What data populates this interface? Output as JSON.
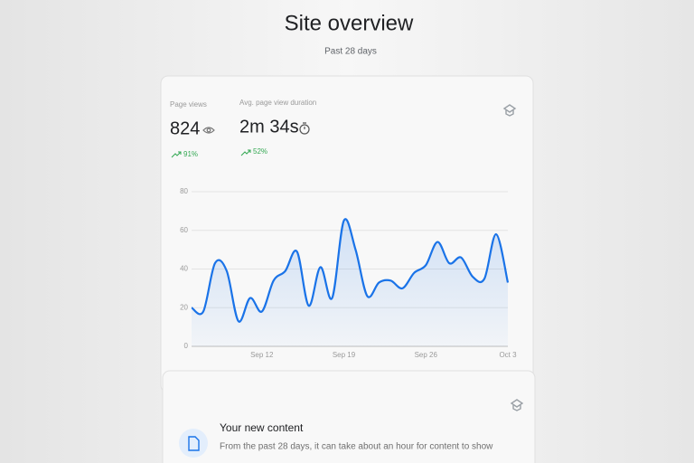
{
  "header": {
    "title": "Site overview",
    "subtitle": "Past 28 days"
  },
  "metrics": [
    {
      "label": "Page views",
      "value": "824",
      "change": "91%"
    },
    {
      "label": "Avg. page view duration",
      "value": "2m 34s",
      "change": "52%"
    }
  ],
  "chart_data": {
    "type": "line",
    "categories": [
      null,
      null,
      null,
      null,
      null,
      null,
      "Sep 12",
      null,
      null,
      null,
      null,
      null,
      null,
      "Sep 19",
      null,
      null,
      null,
      null,
      null,
      null,
      "Sep 26",
      null,
      null,
      null,
      null,
      null,
      null,
      "Oct 3"
    ],
    "values": [
      20,
      18,
      43,
      39,
      13,
      25,
      18,
      34,
      39,
      49,
      21,
      41,
      25,
      65,
      50,
      26,
      33,
      34,
      30,
      38,
      42,
      54,
      43,
      46,
      36,
      35,
      58,
      33
    ],
    "color": "#1a73e8",
    "ylim": [
      0,
      80
    ],
    "yticks": [
      0,
      20,
      40,
      60,
      80
    ],
    "grid": true
  },
  "content_card": {
    "title": "Your new content",
    "text": "From the past 28 days, it can take about an hour for content to show"
  }
}
